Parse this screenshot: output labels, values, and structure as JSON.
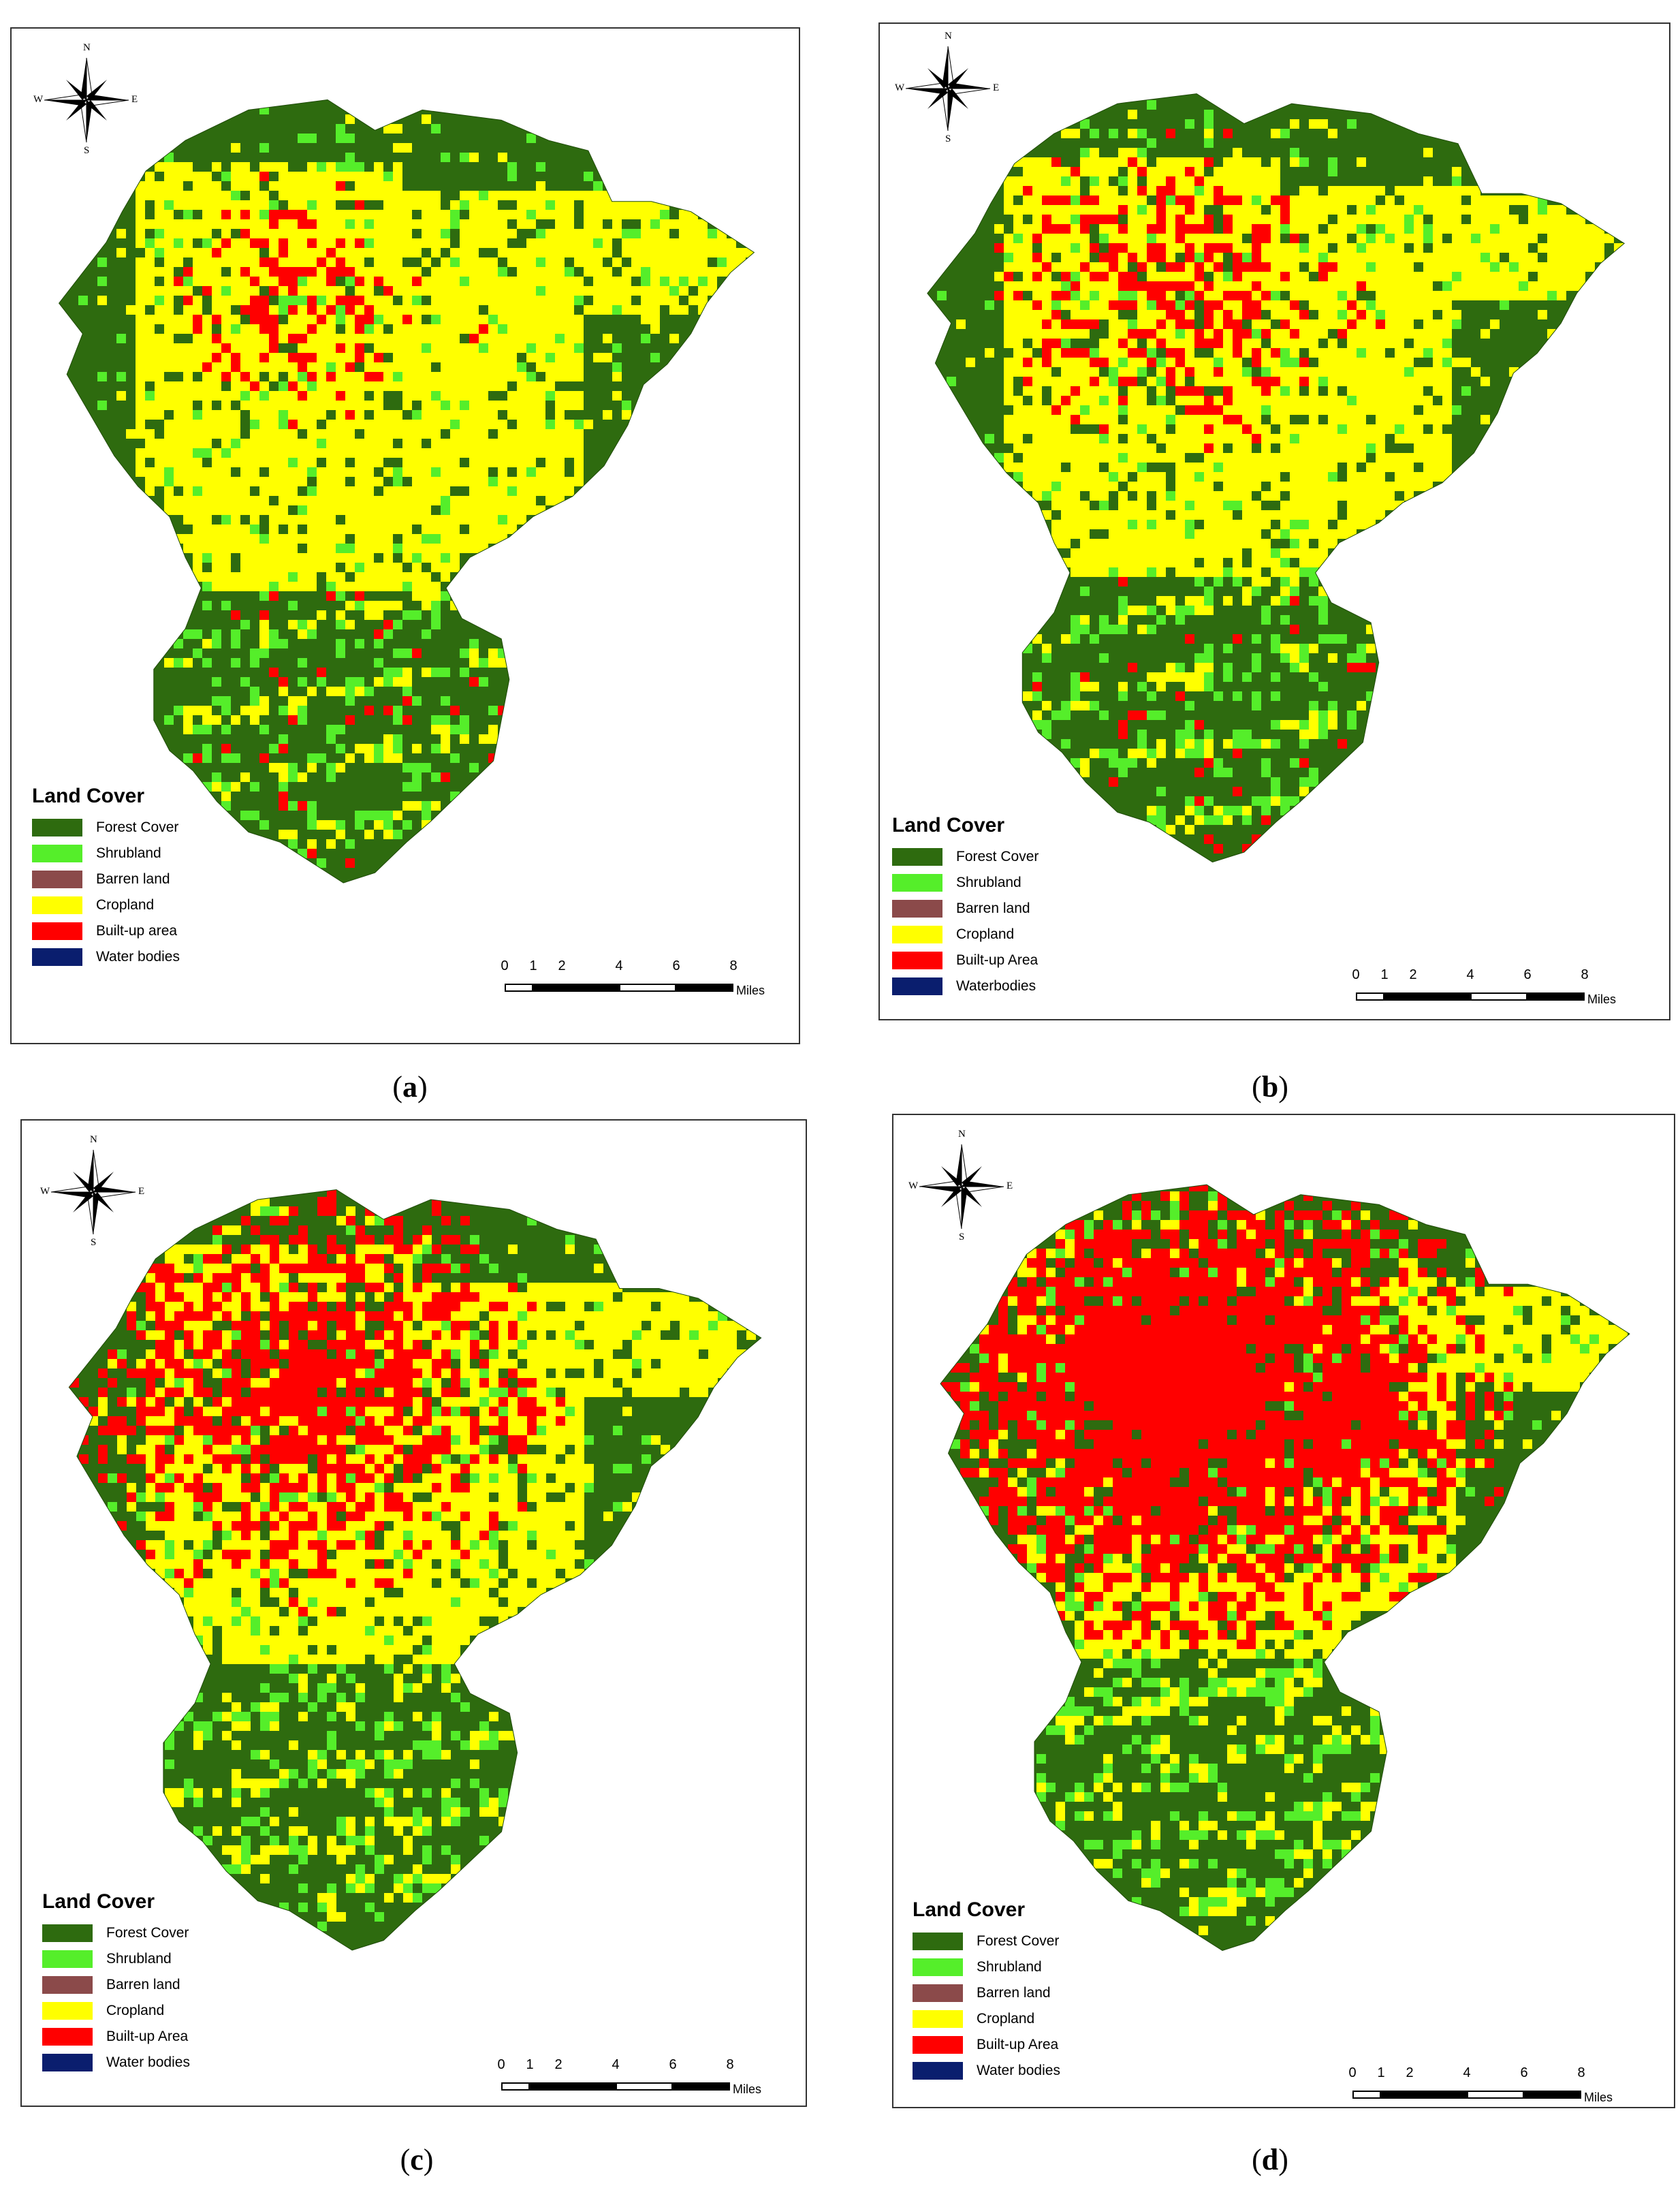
{
  "panels": [
    {
      "id": "a",
      "caption_open": "(",
      "caption_letter": "a",
      "caption_close": ")",
      "compass": {
        "n": "N",
        "s": "S",
        "e": "E",
        "w": "W"
      },
      "legend_title": "Land Cover",
      "legend": [
        {
          "label": "Forest Cover",
          "color": "#2e6b0f"
        },
        {
          "label": "Shrubland",
          "color": "#55ee2a"
        },
        {
          "label": "Barren land",
          "color": "#8b4a4a"
        },
        {
          "label": "Cropland",
          "color": "#ffff00"
        },
        {
          "label": "Built-up area",
          "color": "#ff0000"
        },
        {
          "label": "Water bodies",
          "color": "#0a1e6e"
        }
      ],
      "scale_ticks": [
        "0",
        "1",
        "2",
        "4",
        "6",
        "8"
      ],
      "scale_units": "Miles",
      "built_up_share": 0.18
    },
    {
      "id": "b",
      "caption_open": "(",
      "caption_letter": "b",
      "caption_close": ")",
      "compass": {
        "n": "N",
        "s": "S",
        "e": "E",
        "w": "W"
      },
      "legend_title": "Land Cover",
      "legend": [
        {
          "label": "Forest Cover",
          "color": "#2e6b0f"
        },
        {
          "label": "Shrubland",
          "color": "#55ee2a"
        },
        {
          "label": "Barren land",
          "color": "#8b4a4a"
        },
        {
          "label": "Cropland",
          "color": "#ffff00"
        },
        {
          "label": "Built-up Area",
          "color": "#ff0000"
        },
        {
          "label": "Waterbodies",
          "color": "#0a1e6e"
        }
      ],
      "scale_ticks": [
        "0",
        "1",
        "2",
        "4",
        "6",
        "8"
      ],
      "scale_units": "Miles",
      "built_up_share": 0.24
    },
    {
      "id": "c",
      "caption_open": "(",
      "caption_letter": "c",
      "caption_close": ")",
      "compass": {
        "n": "N",
        "s": "S",
        "e": "E",
        "w": "W"
      },
      "legend_title": "Land Cover",
      "legend": [
        {
          "label": "Forest Cover",
          "color": "#2e6b0f"
        },
        {
          "label": "Shrubland",
          "color": "#55ee2a"
        },
        {
          "label": "Barren land",
          "color": "#8b4a4a"
        },
        {
          "label": "Cropland",
          "color": "#ffff00"
        },
        {
          "label": "Built-up Area",
          "color": "#ff0000"
        },
        {
          "label": "Water bodies",
          "color": "#0a1e6e"
        }
      ],
      "scale_ticks": [
        "0",
        "1",
        "2",
        "4",
        "6",
        "8"
      ],
      "scale_units": "Miles",
      "built_up_share": 0.34
    },
    {
      "id": "d",
      "caption_open": "(",
      "caption_letter": "d",
      "caption_close": ")",
      "compass": {
        "n": "N",
        "s": "S",
        "e": "E",
        "w": "W"
      },
      "legend_title": "Land Cover",
      "legend": [
        {
          "label": "Forest Cover",
          "color": "#2e6b0f"
        },
        {
          "label": "Shrubland",
          "color": "#55ee2a"
        },
        {
          "label": "Barren land",
          "color": "#8b4a4a"
        },
        {
          "label": "Cropland",
          "color": "#ffff00"
        },
        {
          "label": "Built-up Area",
          "color": "#ff0000"
        },
        {
          "label": "Water bodies",
          "color": "#0a1e6e"
        }
      ],
      "scale_ticks": [
        "0",
        "1",
        "2",
        "4",
        "6",
        "8"
      ],
      "scale_units": "Miles",
      "built_up_share": 0.46
    }
  ]
}
